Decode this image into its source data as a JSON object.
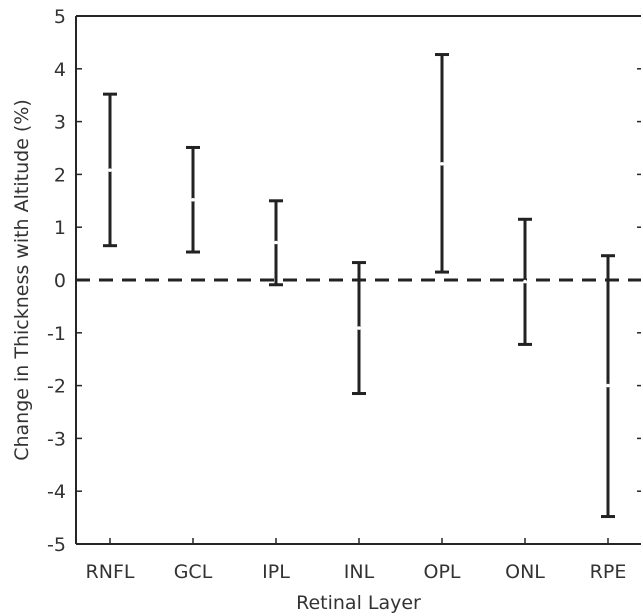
{
  "chart_data": {
    "type": "errorbar",
    "categories": [
      "RNFL",
      "GCL",
      "IPL",
      "INL",
      "OPL",
      "ONL",
      "RPE"
    ],
    "series": [
      {
        "mean": [
          2.08,
          1.52,
          0.71,
          -0.91,
          2.2,
          -0.03,
          -2.0
        ],
        "lower": [
          0.65,
          0.53,
          -0.09,
          -2.15,
          0.15,
          -1.22,
          -4.48
        ],
        "upper": [
          3.52,
          2.51,
          1.5,
          0.33,
          4.27,
          1.15,
          0.46
        ]
      }
    ],
    "xlabel": "Retinal Layer",
    "ylabel": "Change in Thickness with Altitude (%)",
    "ylim": [
      -5,
      5
    ],
    "yticks": [
      "-5",
      "-4",
      "-3",
      "-2",
      "-1",
      "0",
      "1",
      "2",
      "3",
      "4",
      "5"
    ],
    "reference_line": {
      "y": 0,
      "style": "dashed"
    },
    "grid": false,
    "colors": {
      "bars": "#222222",
      "axes": "#262626",
      "text": "#333333"
    }
  }
}
